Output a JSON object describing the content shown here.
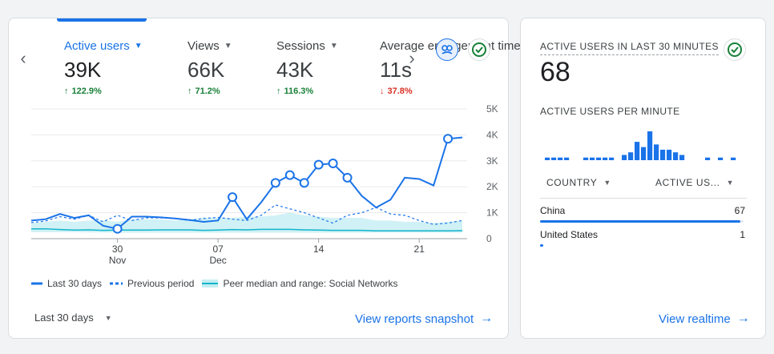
{
  "main": {
    "metrics": [
      {
        "label": "Active users",
        "value": "39K",
        "change": "122.9%",
        "direction": "up",
        "active": true
      },
      {
        "label": "Views",
        "value": "66K",
        "change": "71.2%",
        "direction": "up",
        "active": false
      },
      {
        "label": "Sessions",
        "value": "43K",
        "change": "116.3%",
        "direction": "up",
        "active": false
      },
      {
        "label": "Average engagement time",
        "value": "11s",
        "change": "37.8%",
        "direction": "down",
        "active": false
      }
    ],
    "legend": {
      "last30": "Last 30 days",
      "previous": "Previous period",
      "peer": "Peer median and range: Social Networks"
    },
    "date_range": "Last 30 days",
    "view_link": "View reports snapshot"
  },
  "chart_data": {
    "type": "line",
    "title": "",
    "xlabel": "",
    "ylabel": "",
    "ylim": [
      0,
      5000
    ],
    "y_ticks": [
      "0",
      "1K",
      "2K",
      "3K",
      "4K",
      "5K"
    ],
    "x_ticks": [
      {
        "index": 6,
        "label": "30",
        "sublabel": "Nov"
      },
      {
        "index": 13,
        "label": "07",
        "sublabel": "Dec"
      },
      {
        "index": 20,
        "label": "14",
        "sublabel": ""
      },
      {
        "index": 27,
        "label": "21",
        "sublabel": ""
      }
    ],
    "series": [
      {
        "name": "Last 30 days",
        "style": "solid",
        "color": "#1a73e8",
        "values": [
          700,
          750,
          950,
          800,
          900,
          500,
          380,
          850,
          850,
          820,
          780,
          720,
          650,
          700,
          1600,
          750,
          1400,
          2150,
          2450,
          2150,
          2850,
          2900,
          2350,
          1650,
          1200,
          1500,
          2350,
          2300,
          2050,
          3850,
          3900
        ],
        "markers": [
          6,
          14,
          17,
          18,
          19,
          20,
          21,
          22,
          29
        ]
      },
      {
        "name": "Previous period",
        "style": "dashed",
        "color": "#1a73e8",
        "values": [
          620,
          680,
          850,
          750,
          900,
          650,
          900,
          700,
          800,
          800,
          780,
          700,
          780,
          820,
          750,
          700,
          900,
          1300,
          1150,
          1000,
          800,
          600,
          900,
          1000,
          1200,
          950,
          900,
          700,
          550,
          600,
          700
        ]
      },
      {
        "name": "Peer median and range: Social Networks",
        "style": "band",
        "color": "#12b5cb",
        "values": [
          380,
          380,
          350,
          330,
          340,
          320,
          330,
          330,
          330,
          340,
          340,
          340,
          320,
          330,
          350,
          340,
          360,
          360,
          360,
          340,
          330,
          320,
          320,
          320,
          300,
          300,
          300,
          300,
          300,
          300,
          310
        ],
        "upper": [
          600,
          650,
          700,
          650,
          700,
          700,
          650,
          750,
          750,
          750,
          700,
          750,
          800,
          800,
          800,
          850,
          850,
          900,
          1000,
          900,
          850,
          800,
          800,
          800,
          700,
          700,
          650,
          650,
          600,
          650,
          700
        ],
        "lower": [
          250,
          250,
          250,
          250,
          240,
          240,
          230,
          230,
          230,
          230,
          230,
          230,
          230,
          230,
          230,
          230,
          230,
          230,
          230,
          230,
          230,
          230,
          230,
          230,
          230,
          230,
          230,
          230,
          230,
          230,
          230
        ]
      }
    ]
  },
  "realtime": {
    "title": "ACTIVE USERS IN LAST 30 MINUTES",
    "value": "68",
    "per_minute_label": "ACTIVE USERS PER MINUTE",
    "per_minute": [
      1,
      1,
      1,
      1,
      0,
      0,
      1,
      1,
      1,
      1,
      1,
      0,
      2,
      3,
      7,
      5,
      11,
      6,
      4,
      4,
      3,
      2,
      0,
      0,
      0,
      1,
      0,
      1,
      0,
      1
    ],
    "columns": {
      "country": "COUNTRY",
      "users": "ACTIVE US..."
    },
    "rows": [
      {
        "country": "China",
        "users": "67",
        "share": 0.985
      },
      {
        "country": "United States",
        "users": "1",
        "share": 0.015
      }
    ],
    "view_link": "View realtime"
  },
  "colors": {
    "accent": "#1a73e8",
    "up": "#188038",
    "down": "#d93025",
    "peer": "#12b5cb"
  }
}
